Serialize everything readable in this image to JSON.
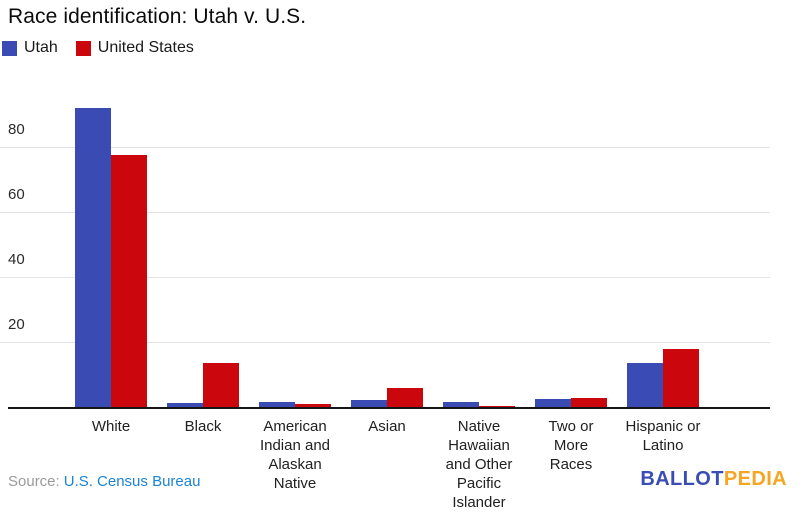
{
  "header": {
    "title": "Race identification: Utah v. U.S."
  },
  "legend": {
    "items": [
      {
        "label": "Utah",
        "color": "#3A4BB4"
      },
      {
        "label": "United States",
        "color": "#CB060C"
      }
    ]
  },
  "chart_data": {
    "type": "bar",
    "title": "Race identification: Utah v. U.S.",
    "xlabel": "",
    "ylabel": "",
    "categories": [
      "White",
      "Black",
      "American Indian and Alaskan Native",
      "Asian",
      "Native Hawaiian and Other Pacific Islander",
      "Two or More Races",
      "Hispanic or Latino"
    ],
    "category_label_lines": [
      [
        "White"
      ],
      [
        "Black"
      ],
      [
        "American",
        "Indian and",
        "Alaskan",
        "Native"
      ],
      [
        "Asian"
      ],
      [
        "Native",
        "Hawaiian",
        "and Other",
        "Pacific",
        "Islander"
      ],
      [
        "Two or",
        "More",
        "Races"
      ],
      [
        "Hispanic or",
        "Latino"
      ]
    ],
    "series": [
      {
        "name": "Utah",
        "color": "#3A4BB4",
        "values": [
          92.0,
          1.3,
          1.6,
          2.2,
          1.4,
          2.6,
          13.6
        ]
      },
      {
        "name": "United States",
        "color": "#CB060C",
        "values": [
          77.6,
          13.4,
          1.0,
          5.7,
          0.2,
          2.7,
          17.7
        ]
      }
    ],
    "ylim": [
      0,
      96
    ],
    "yticks": [
      20,
      40,
      60,
      80
    ],
    "grid": "horizontal",
    "legend_position": "top-left",
    "unit": "percent"
  },
  "footer": {
    "source_prefix": "Source:",
    "source_link": "U.S. Census Bureau",
    "logo": {
      "part1": "BALLOT",
      "part2": "PEDIA"
    }
  },
  "colors": {
    "utah_bar": "#3A4BB4",
    "us_bar": "#CB060C",
    "gridline": "#e4e4e4",
    "axis": "#151515",
    "source_link": "#1d83d4",
    "logo_blue": "#3a4db5",
    "logo_gold": "#f5a623",
    "background": "#ffffff"
  }
}
